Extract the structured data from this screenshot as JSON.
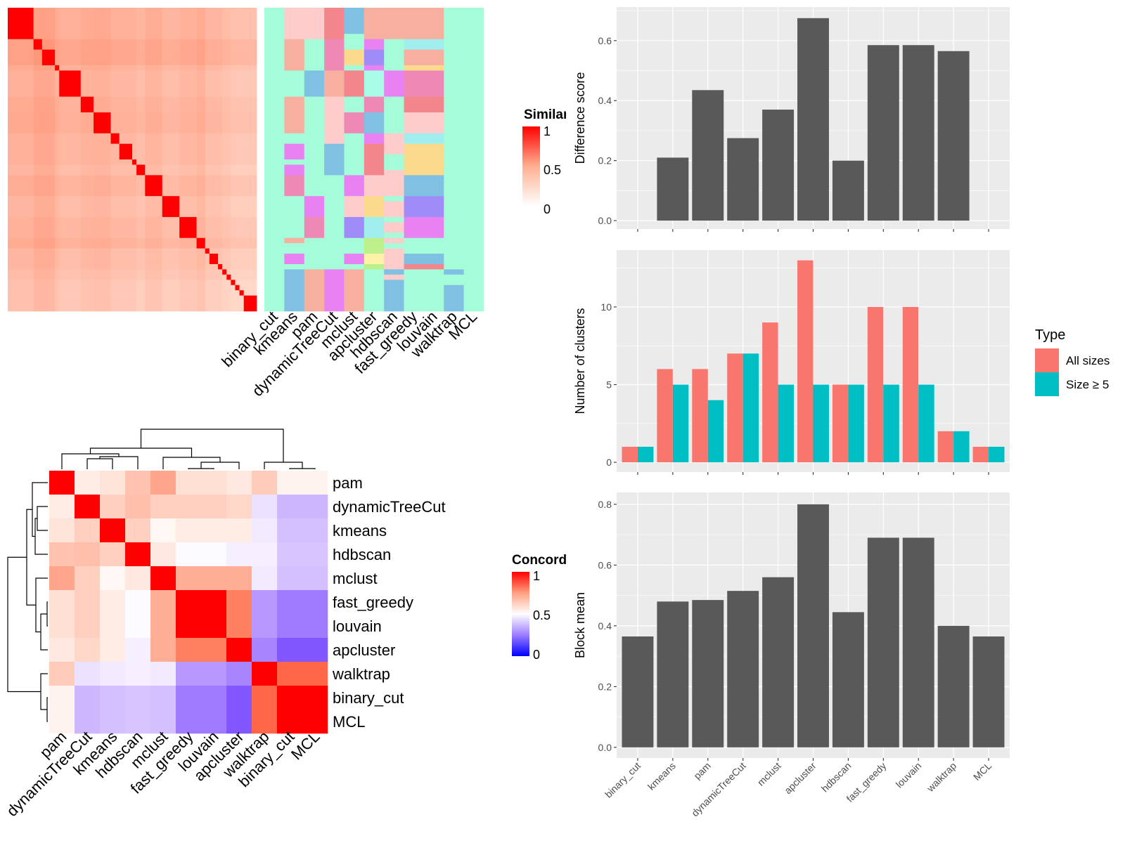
{
  "similarity_heatmap": {
    "legend_title": "Similarity",
    "legend_ticks": [
      "1",
      "0.5",
      "0"
    ],
    "block_sizes": [
      6,
      2,
      3,
      1,
      5,
      3,
      4,
      2,
      3,
      1,
      2,
      4,
      4,
      4,
      2,
      1,
      2,
      1,
      1,
      1,
      1,
      1,
      1,
      3
    ],
    "block_levels": [
      0.42,
      0.5,
      0.5,
      0.4,
      0.35,
      0.4,
      0.42,
      0.35,
      0.35,
      0.35,
      0.3,
      0.38,
      0.3,
      0.35,
      0.4,
      0.3,
      0.3,
      0.3,
      0.25,
      0.25,
      0.2,
      0.2,
      0.2,
      0.2
    ]
  },
  "annotation": {
    "palette": {
      "mint": "#A5FCD9",
      "pink": "#FFCCCC",
      "salmon": "#F7B0A0",
      "redpink": "#F2868C",
      "blue": "#80C0E2",
      "magenta": "#E882F2",
      "lilac": "#A08CF8",
      "yellow": "#FADA8C",
      "rose": "#EE89B6",
      "cyan": "#A0EEEE",
      "aqua": "#A8FCE8",
      "lightgreen": "#BBF08A",
      "lightyellow": "#FDF2A8"
    },
    "columns": [
      {
        "method": "binary_cut",
        "segments": [
          [
            0,
            58,
            "mint"
          ]
        ]
      },
      {
        "method": "kmeans",
        "segments": [
          [
            0,
            6,
            "pink"
          ],
          [
            6,
            12,
            "salmon"
          ],
          [
            12,
            17,
            "mint"
          ],
          [
            17,
            24,
            "salmon"
          ],
          [
            24,
            26,
            "mint"
          ],
          [
            26,
            29,
            "magenta"
          ],
          [
            29,
            30,
            "mint"
          ],
          [
            30,
            32,
            "magenta"
          ],
          [
            32,
            36,
            "rose"
          ],
          [
            36,
            44,
            "mint"
          ],
          [
            44,
            45,
            "salmon"
          ],
          [
            45,
            47,
            "mint"
          ],
          [
            47,
            49,
            "magenta"
          ],
          [
            49,
            50,
            "mint"
          ],
          [
            50,
            58,
            "blue"
          ]
        ]
      },
      {
        "method": "pam",
        "segments": [
          [
            0,
            6,
            "pink"
          ],
          [
            6,
            12,
            "mint"
          ],
          [
            12,
            17,
            "blue"
          ],
          [
            17,
            36,
            "mint"
          ],
          [
            36,
            40,
            "magenta"
          ],
          [
            40,
            44,
            "rose"
          ],
          [
            44,
            50,
            "mint"
          ],
          [
            50,
            58,
            "salmon"
          ]
        ]
      },
      {
        "method": "dynamicTreeCut",
        "segments": [
          [
            0,
            6,
            "redpink"
          ],
          [
            6,
            12,
            "rose"
          ],
          [
            12,
            17,
            "salmon"
          ],
          [
            17,
            26,
            "pink"
          ],
          [
            26,
            32,
            "blue"
          ],
          [
            32,
            50,
            "mint"
          ],
          [
            50,
            58,
            "magenta"
          ]
        ]
      },
      {
        "method": "mclust",
        "segments": [
          [
            0,
            5,
            "blue"
          ],
          [
            5,
            8,
            "mint"
          ],
          [
            8,
            11,
            "yellow"
          ],
          [
            11,
            12,
            "mint"
          ],
          [
            12,
            17,
            "redpink"
          ],
          [
            17,
            20,
            "mint"
          ],
          [
            20,
            24,
            "rose"
          ],
          [
            24,
            32,
            "mint"
          ],
          [
            32,
            36,
            "magenta"
          ],
          [
            36,
            40,
            "pink"
          ],
          [
            40,
            44,
            "lilac"
          ],
          [
            44,
            47,
            "mint"
          ],
          [
            47,
            49,
            "magenta"
          ],
          [
            49,
            50,
            "mint"
          ],
          [
            50,
            58,
            "salmon"
          ]
        ]
      },
      {
        "method": "apcluster",
        "segments": [
          [
            0,
            6,
            "salmon"
          ],
          [
            6,
            8,
            "magenta"
          ],
          [
            8,
            11,
            "lilac"
          ],
          [
            11,
            12,
            "magenta"
          ],
          [
            12,
            17,
            "aqua"
          ],
          [
            17,
            20,
            "rose"
          ],
          [
            20,
            24,
            "blue"
          ],
          [
            24,
            26,
            "magenta"
          ],
          [
            26,
            32,
            "redpink"
          ],
          [
            32,
            36,
            "pink"
          ],
          [
            36,
            40,
            "yellow"
          ],
          [
            40,
            44,
            "cyan"
          ],
          [
            44,
            47,
            "lightgreen"
          ],
          [
            47,
            49,
            "lightyellow"
          ],
          [
            49,
            50,
            "lightgreen"
          ],
          [
            50,
            58,
            "mint"
          ]
        ]
      },
      {
        "method": "hdbscan",
        "segments": [
          [
            0,
            6,
            "salmon"
          ],
          [
            6,
            12,
            "mint"
          ],
          [
            12,
            17,
            "magenta"
          ],
          [
            17,
            24,
            "mint"
          ],
          [
            24,
            28,
            "pink"
          ],
          [
            28,
            31,
            "mint"
          ],
          [
            31,
            36,
            "pink"
          ],
          [
            36,
            37,
            "mint"
          ],
          [
            37,
            40,
            "pink"
          ],
          [
            40,
            41,
            "mint"
          ],
          [
            41,
            43,
            "pink"
          ],
          [
            43,
            44,
            "mint"
          ],
          [
            44,
            45,
            "pink"
          ],
          [
            45,
            46,
            "mint"
          ],
          [
            46,
            50,
            "pink"
          ],
          [
            50,
            51,
            "blue"
          ],
          [
            51,
            52,
            "pink"
          ],
          [
            52,
            58,
            "blue"
          ]
        ]
      },
      {
        "method": "fast_greedy",
        "segments": [
          [
            0,
            6,
            "salmon"
          ],
          [
            6,
            8,
            "cyan"
          ],
          [
            8,
            11,
            "salmon"
          ],
          [
            11,
            12,
            "yellow"
          ],
          [
            12,
            17,
            "rose"
          ],
          [
            17,
            20,
            "redpink"
          ],
          [
            20,
            24,
            "pink"
          ],
          [
            24,
            26,
            "cyan"
          ],
          [
            26,
            32,
            "yellow"
          ],
          [
            32,
            36,
            "blue"
          ],
          [
            36,
            40,
            "lilac"
          ],
          [
            40,
            44,
            "magenta"
          ],
          [
            44,
            47,
            "mint"
          ],
          [
            47,
            49,
            "blue"
          ],
          [
            49,
            50,
            "redpink"
          ],
          [
            50,
            58,
            "mint"
          ]
        ]
      },
      {
        "method": "louvain",
        "segments": [
          [
            0,
            6,
            "salmon"
          ],
          [
            6,
            8,
            "cyan"
          ],
          [
            8,
            11,
            "salmon"
          ],
          [
            11,
            12,
            "yellow"
          ],
          [
            12,
            17,
            "rose"
          ],
          [
            17,
            20,
            "redpink"
          ],
          [
            20,
            24,
            "pink"
          ],
          [
            24,
            26,
            "cyan"
          ],
          [
            26,
            32,
            "yellow"
          ],
          [
            32,
            36,
            "blue"
          ],
          [
            36,
            40,
            "lilac"
          ],
          [
            40,
            44,
            "magenta"
          ],
          [
            44,
            47,
            "mint"
          ],
          [
            47,
            49,
            "blue"
          ],
          [
            49,
            50,
            "redpink"
          ],
          [
            50,
            58,
            "mint"
          ]
        ]
      },
      {
        "method": "walktrap",
        "segments": [
          [
            0,
            50,
            "mint"
          ],
          [
            50,
            51,
            "blue"
          ],
          [
            51,
            53,
            "mint"
          ],
          [
            53,
            58,
            "blue"
          ]
        ]
      },
      {
        "method": "MCL",
        "segments": [
          [
            0,
            58,
            "mint"
          ]
        ]
      }
    ]
  },
  "concordance": {
    "legend_title": "Concordance",
    "legend_ticks": [
      "1",
      "0.5",
      "0"
    ],
    "order": [
      "pam",
      "dynamicTreeCut",
      "kmeans",
      "hdbscan",
      "mclust",
      "fast_greedy",
      "louvain",
      "apcluster",
      "walktrap",
      "binary_cut",
      "MCL"
    ],
    "matrix": [
      [
        1,
        0.55,
        0.57,
        0.65,
        0.72,
        0.58,
        0.58,
        0.56,
        0.63,
        0.53,
        0.53
      ],
      [
        0.55,
        1,
        0.62,
        0.66,
        0.62,
        0.62,
        0.62,
        0.6,
        0.43,
        0.33,
        0.33
      ],
      [
        0.57,
        0.62,
        1,
        0.62,
        0.52,
        0.55,
        0.55,
        0.55,
        0.45,
        0.35,
        0.35
      ],
      [
        0.65,
        0.66,
        0.62,
        1,
        0.56,
        0.49,
        0.49,
        0.46,
        0.46,
        0.36,
        0.36
      ],
      [
        0.72,
        0.62,
        0.52,
        0.56,
        1,
        0.7,
        0.7,
        0.7,
        0.45,
        0.35,
        0.35
      ],
      [
        0.58,
        0.62,
        0.55,
        0.49,
        0.7,
        1,
        1,
        0.8,
        0.26,
        0.2,
        0.2
      ],
      [
        0.58,
        0.62,
        0.55,
        0.49,
        0.7,
        1,
        1,
        0.8,
        0.26,
        0.2,
        0.2
      ],
      [
        0.56,
        0.6,
        0.55,
        0.46,
        0.7,
        0.8,
        0.8,
        1,
        0.22,
        0.13,
        0.13
      ],
      [
        0.63,
        0.43,
        0.45,
        0.46,
        0.45,
        0.26,
        0.26,
        0.22,
        1,
        0.85,
        0.85
      ],
      [
        0.53,
        0.33,
        0.35,
        0.36,
        0.35,
        0.2,
        0.2,
        0.13,
        0.85,
        1,
        1
      ],
      [
        0.53,
        0.33,
        0.35,
        0.36,
        0.35,
        0.2,
        0.2,
        0.13,
        0.85,
        1,
        1
      ]
    ]
  },
  "chart_data": [
    {
      "type": "bar",
      "categories": [
        "binary_cut",
        "kmeans",
        "pam",
        "dynamicTreeCut",
        "mclust",
        "apcluster",
        "hdbscan",
        "fast_greedy",
        "louvain",
        "walktrap",
        "MCL"
      ],
      "values": [
        0,
        0.21,
        0.435,
        0.275,
        0.37,
        0.675,
        0.2,
        0.585,
        0.585,
        0.565,
        0
      ],
      "xlabel": "",
      "ylabel": "Difference score",
      "ylim": [
        -0.028,
        0.712
      ],
      "yticks": [
        "0.0",
        "0.2",
        "0.4",
        "0.6"
      ],
      "grid": true,
      "bar_color": "#595959"
    },
    {
      "type": "bar",
      "categories": [
        "binary_cut",
        "kmeans",
        "pam",
        "dynamicTreeCut",
        "mclust",
        "apcluster",
        "hdbscan",
        "fast_greedy",
        "louvain",
        "walktrap",
        "MCL"
      ],
      "series": [
        {
          "name": "All sizes",
          "color": "#F8766D",
          "values": [
            1,
            6,
            6,
            7,
            9,
            13,
            5,
            10,
            10,
            2,
            1
          ]
        },
        {
          "name": "Size ≥ 5",
          "color": "#00BFC4",
          "values": [
            1,
            5,
            4,
            7,
            5,
            5,
            5,
            5,
            5,
            2,
            1
          ]
        }
      ],
      "xlabel": "",
      "ylabel": "Number of clusters",
      "ylim": [
        -0.63,
        13.66
      ],
      "yticks": [
        "0",
        "5",
        "10"
      ],
      "grid": true,
      "legend": {
        "title": "Type",
        "position": "right"
      }
    },
    {
      "type": "bar",
      "categories": [
        "binary_cut",
        "kmeans",
        "pam",
        "dynamicTreeCut",
        "mclust",
        "apcluster",
        "hdbscan",
        "fast_greedy",
        "louvain",
        "walktrap",
        "MCL"
      ],
      "values": [
        0.365,
        0.48,
        0.485,
        0.515,
        0.56,
        0.8,
        0.445,
        0.69,
        0.69,
        0.4,
        0.365
      ],
      "xlabel": "",
      "ylabel": "Block mean",
      "ylim": [
        -0.035,
        0.839
      ],
      "yticks": [
        "0.0",
        "0.2",
        "0.4",
        "0.6",
        "0.8"
      ],
      "grid": true,
      "bar_color": "#595959"
    }
  ]
}
